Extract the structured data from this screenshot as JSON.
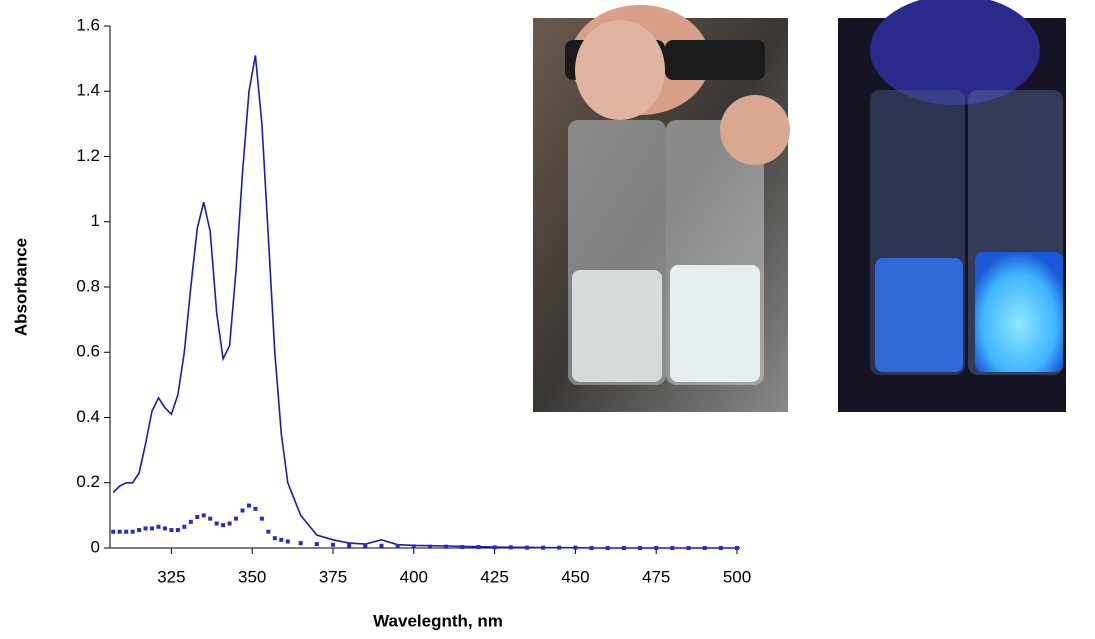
{
  "chart_data": {
    "type": "line",
    "xlabel": "Wavelegnth, nm",
    "ylabel": "Absorbance",
    "x": [
      307,
      309,
      311,
      313,
      315,
      317,
      319,
      321,
      323,
      325,
      327,
      329,
      331,
      333,
      335,
      337,
      339,
      341,
      343,
      345,
      347,
      349,
      351,
      353,
      355,
      357,
      359,
      361,
      365,
      370,
      375,
      380,
      385,
      390,
      395,
      400,
      405,
      410,
      415,
      420,
      425,
      430,
      435,
      440,
      445,
      450,
      455,
      460,
      465,
      470,
      475,
      480,
      485,
      490,
      495,
      500
    ],
    "series": [
      {
        "color": "#1c1cb4",
        "style": "solid",
        "values": [
          0.17,
          0.19,
          0.2,
          0.2,
          0.23,
          0.32,
          0.42,
          0.46,
          0.43,
          0.41,
          0.47,
          0.6,
          0.8,
          0.98,
          1.06,
          0.97,
          0.72,
          0.58,
          0.62,
          0.85,
          1.15,
          1.4,
          1.51,
          1.3,
          0.95,
          0.6,
          0.35,
          0.2,
          0.1,
          0.04,
          0.025,
          0.015,
          0.012,
          0.025,
          0.01,
          0.008,
          0.007,
          0.006,
          0.005,
          0.004,
          0.003,
          0.002,
          0.002,
          0.001,
          0.001,
          0.001,
          0,
          0,
          0,
          0,
          0,
          0,
          0,
          0,
          0,
          0
        ]
      },
      {
        "color": "#2a2ac8",
        "style": "dotted",
        "values": [
          0.05,
          0.05,
          0.05,
          0.05,
          0.055,
          0.06,
          0.06,
          0.065,
          0.06,
          0.055,
          0.055,
          0.065,
          0.08,
          0.095,
          0.1,
          0.09,
          0.075,
          0.07,
          0.075,
          0.09,
          0.115,
          0.13,
          0.12,
          0.09,
          0.05,
          0.03,
          0.025,
          0.02,
          0.015,
          0.012,
          0.01,
          0.008,
          0.007,
          0.007,
          0.006,
          0.005,
          0.004,
          0.004,
          0.003,
          0.003,
          0.002,
          0.002,
          0.001,
          0.001,
          0.001,
          0.001,
          0,
          0,
          0,
          0,
          0,
          0,
          0,
          0,
          0,
          0
        ]
      }
    ],
    "xlim": [
      306,
      500
    ],
    "xticks": [
      325,
      350,
      375,
      400,
      425,
      450,
      475,
      500
    ],
    "ylim": [
      0,
      1.6
    ],
    "yticks": [
      0,
      0.2,
      0.4,
      0.6,
      0.8,
      1,
      1.2,
      1.4,
      1.6
    ],
    "grid": false
  }
}
